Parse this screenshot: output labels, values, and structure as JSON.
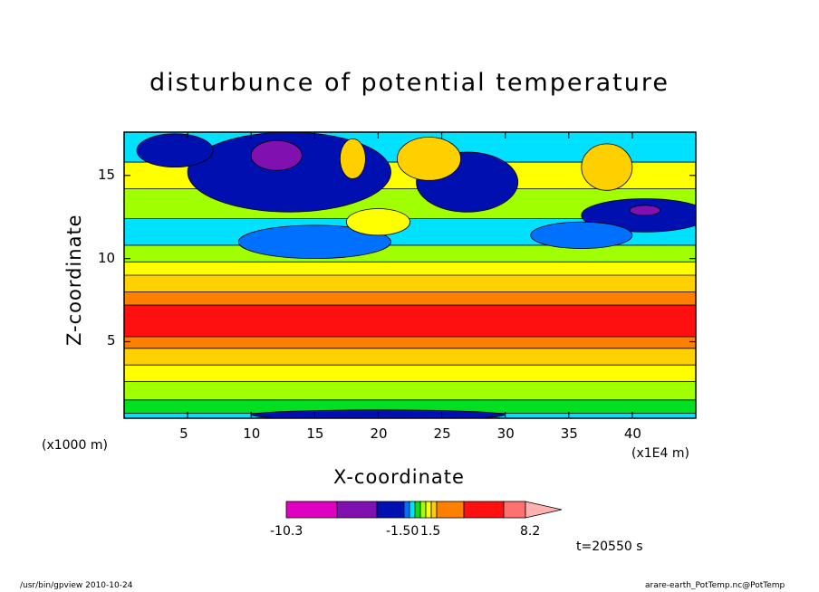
{
  "header": {
    "title": "disturbunce of potential temperature"
  },
  "chart_data": {
    "type": "heatmap",
    "title": "disturbunce of potential temperature",
    "xlabel": "X-coordinate",
    "ylabel": "Z-coordinate",
    "x_unit_left": "(x1000 m)",
    "x_unit_right": "(x1E4 m)",
    "x_ticks": [
      "5",
      "10",
      "15",
      "20",
      "25",
      "30",
      "35",
      "40"
    ],
    "x_tick_values": [
      5,
      10,
      15,
      20,
      25,
      30,
      35,
      40
    ],
    "y_ticks": [
      "5",
      "10",
      "15"
    ],
    "y_tick_values": [
      5,
      10,
      15
    ],
    "xlim": [
      0,
      45
    ],
    "ylim": [
      0.4,
      17.6
    ],
    "z_bands": [
      {
        "z": [
          0.4,
          0.7
        ],
        "level": 4
      },
      {
        "z": [
          0.7,
          1.5
        ],
        "level": 5
      },
      {
        "z": [
          1.5,
          2.6
        ],
        "level": 6
      },
      {
        "z": [
          2.6,
          3.6
        ],
        "level": 7
      },
      {
        "z": [
          3.6,
          4.6
        ],
        "level": 8
      },
      {
        "z": [
          4.6,
          5.3
        ],
        "level": 9
      },
      {
        "z": [
          5.3,
          7.2
        ],
        "level": 10
      },
      {
        "z": [
          7.2,
          8.0
        ],
        "level": 9
      },
      {
        "z": [
          8.0,
          9.0
        ],
        "level": 8
      },
      {
        "z": [
          9.0,
          9.8
        ],
        "level": 7
      },
      {
        "z": [
          9.8,
          10.8
        ],
        "level": 6
      },
      {
        "z": [
          10.8,
          12.4
        ],
        "level": 4
      },
      {
        "z": [
          12.4,
          14.2
        ],
        "level": 6
      },
      {
        "z": [
          14.2,
          15.8
        ],
        "level": 7
      },
      {
        "z": [
          15.8,
          17.6
        ],
        "level": 4
      }
    ],
    "features": [
      {
        "x": 13,
        "z": 15.2,
        "rx": 8,
        "rz": 2.4,
        "level": 2
      },
      {
        "x": 12,
        "z": 16.2,
        "rx": 2.0,
        "rz": 0.9,
        "level": 1
      },
      {
        "x": 4,
        "z": 16.5,
        "rx": 3,
        "rz": 1.0,
        "level": 2
      },
      {
        "x": 27,
        "z": 14.6,
        "rx": 4,
        "rz": 1.8,
        "level": 2
      },
      {
        "x": 41,
        "z": 12.6,
        "rx": 5,
        "rz": 1.0,
        "level": 2
      },
      {
        "x": 41,
        "z": 12.9,
        "rx": 1.2,
        "rz": 0.3,
        "level": 1
      },
      {
        "x": 24,
        "z": 16.0,
        "rx": 2.5,
        "rz": 1.3,
        "level": 8
      },
      {
        "x": 18,
        "z": 16.0,
        "rx": 1.0,
        "rz": 1.2,
        "level": 8
      },
      {
        "x": 38,
        "z": 15.5,
        "rx": 2.0,
        "rz": 1.4,
        "level": 8
      },
      {
        "x": 15,
        "z": 11.0,
        "rx": 6,
        "rz": 1.0,
        "level": 3
      },
      {
        "x": 36,
        "z": 11.4,
        "rx": 4,
        "rz": 0.8,
        "level": 3
      },
      {
        "x": 20,
        "z": 0.6,
        "rx": 10,
        "rz": 0.3,
        "level": 2
      },
      {
        "x": 20,
        "z": 12.2,
        "rx": 2.5,
        "rz": 0.8,
        "level": 7
      }
    ],
    "colorbar": {
      "levels": [
        -10.3,
        -1.5,
        0,
        1.5,
        8.2
      ],
      "labels": [
        "-10.3",
        "-1.50",
        "1.5",
        "8.2"
      ],
      "colors": [
        "#e000c0",
        "#8010b0",
        "#0010b0",
        "#0070ff",
        "#00e0ff",
        "#00e020",
        "#a0ff00",
        "#ffff00",
        "#ffd000",
        "#ff8000",
        "#ff1010",
        "#ff7070",
        "#ffb0b0"
      ]
    },
    "legend": "bottom"
  },
  "annotations": {
    "time": "t=20550 s"
  },
  "footer": {
    "left": "/usr/bin/gpview  2010-10-24",
    "right": "arare-earth_PotTemp.nc@PotTemp"
  }
}
